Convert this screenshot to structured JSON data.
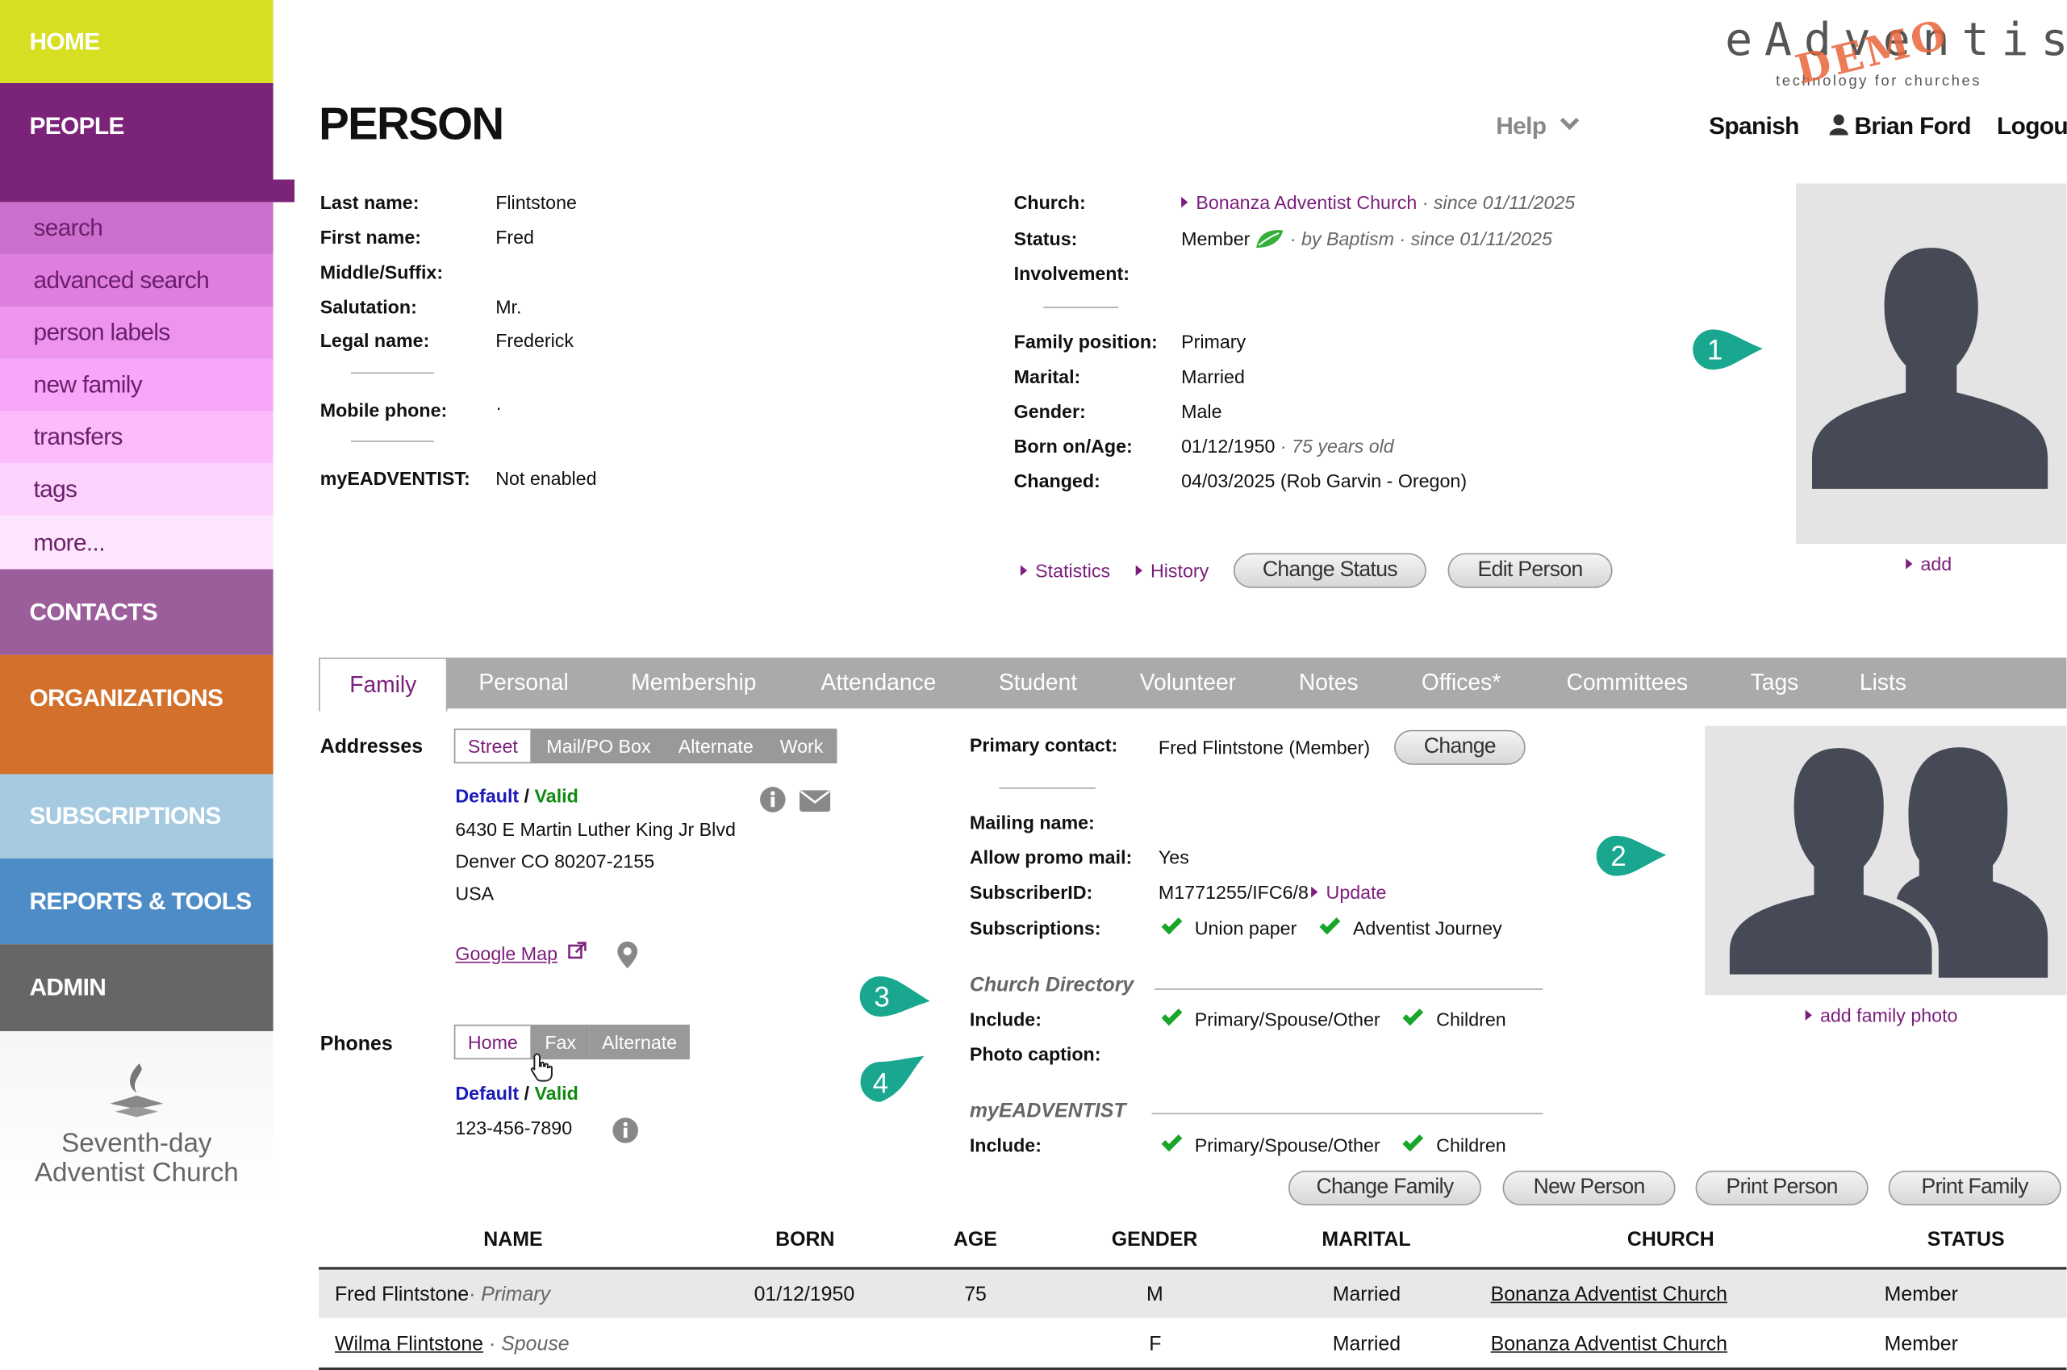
{
  "sidebar": {
    "home": "HOME",
    "people": "PEOPLE",
    "people_items": [
      "search",
      "advanced search",
      "person labels",
      "new family",
      "transfers",
      "tags",
      "more..."
    ],
    "contacts": "CONTACTS",
    "organizations": "ORGANIZATIONS",
    "subscriptions": "SUBSCRIPTIONS",
    "reports": "REPORTS & TOOLS",
    "admin": "ADMIN",
    "logo_line1": "Seventh-day",
    "logo_line2": "Adventist Church"
  },
  "header": {
    "title": "PERSON",
    "help": "Help",
    "language": "Spanish",
    "user": "Brian Ford",
    "logout": "Logout",
    "brand": "eAdventist",
    "brand_tagline": "technology for churches",
    "brand_stamp": "DEMO"
  },
  "person": {
    "last_name_label": "Last name:",
    "last_name": "Flintstone",
    "first_name_label": "First name:",
    "first_name": "Fred",
    "middle_label": "Middle/Suffix:",
    "salutation_label": "Salutation:",
    "salutation": "Mr.",
    "legal_label": "Legal name:",
    "legal": "Frederick",
    "mobile_label": "Mobile phone:",
    "mobile": "·",
    "myea_label": "myEADVENTIST:",
    "myea": "Not enabled",
    "church_label": "Church:",
    "church": "Bonanza Adventist Church",
    "church_since": "· since 01/11/2025",
    "status_label": "Status:",
    "status": "Member",
    "status_note": "· by Baptism · since 01/11/2025",
    "involvement_label": "Involvement:",
    "family_pos_label": "Family position:",
    "family_pos": "Primary",
    "marital_label": "Marital:",
    "marital": "Married",
    "gender_label": "Gender:",
    "gender": "Male",
    "born_label": "Born on/Age:",
    "born": "01/12/1950",
    "age_note": "· 75 years old",
    "changed_label": "Changed:",
    "changed": "04/03/2025 (Rob Garvin - Oregon)",
    "statistics": "Statistics",
    "history": "History",
    "change_status": "Change Status",
    "edit_person": "Edit Person",
    "photo_add": "add"
  },
  "tabs": [
    "Family",
    "Personal",
    "Membership",
    "Attendance",
    "Student",
    "Volunteer",
    "Notes",
    "Offices*",
    "Committees",
    "Tags",
    "Lists"
  ],
  "family": {
    "addresses_label": "Addresses",
    "address_tabs": [
      "Street",
      "Mail/PO Box",
      "Alternate",
      "Work"
    ],
    "default": "Default",
    "slash": "/",
    "valid": "Valid",
    "address_lines": [
      "6430 E Martin Luther King Jr Blvd",
      "Denver CO 80207-2155",
      "USA"
    ],
    "google_map": "Google Map",
    "phones_label": "Phones",
    "phone_tabs": [
      "Home",
      "Fax",
      "Alternate"
    ],
    "phone": "123-456-7890",
    "primary_contact_label": "Primary contact:",
    "primary_contact": "Fred Flintstone (Member)",
    "change": "Change",
    "mailing_label": "Mailing name:",
    "promo_label": "Allow promo mail:",
    "promo": "Yes",
    "subscriber_label": "SubscriberID:",
    "subscriber": "M1771255/IFC6/8",
    "update": "Update",
    "subscriptions_label": "Subscriptions:",
    "sub1": "Union paper",
    "sub2": "Adventist Journey",
    "directory_title": "Church Directory",
    "include_label": "Include:",
    "inc1": "Primary/Spouse/Other",
    "inc2": "Children",
    "caption_label": "Photo caption:",
    "myea_title": "myEADVENTIST",
    "add_family_photo": "add family photo",
    "buttons": [
      "Change Family",
      "New Person",
      "Print Person",
      "Print Family"
    ]
  },
  "callouts": [
    "1",
    "2",
    "3",
    "4"
  ],
  "table": {
    "headers": [
      "NAME",
      "BORN",
      "AGE",
      "GENDER",
      "MARITAL",
      "CHURCH",
      "STATUS"
    ],
    "rows": [
      {
        "name": "Fred Flintstone",
        "role": "· Primary",
        "born": "01/12/1950",
        "age": "75",
        "gender": "M",
        "marital": "Married",
        "church": "Bonanza Adventist Church",
        "status": "Member"
      },
      {
        "name": "Wilma Flintstone",
        "role": "· Spouse",
        "born": "",
        "age": "",
        "gender": "F",
        "marital": "Married",
        "church": "Bonanza Adventist Church",
        "status": "Member"
      }
    ]
  },
  "colors": {
    "home": "#d6df22",
    "people": "#7b2379",
    "contacts": "#9b5e9b",
    "organizations": "#d2702c",
    "subscriptions": "#a6cbe1",
    "reports": "#4d8cc7",
    "admin": "#666666",
    "accent": "#7b1e7c",
    "teal": "#1aa790"
  }
}
